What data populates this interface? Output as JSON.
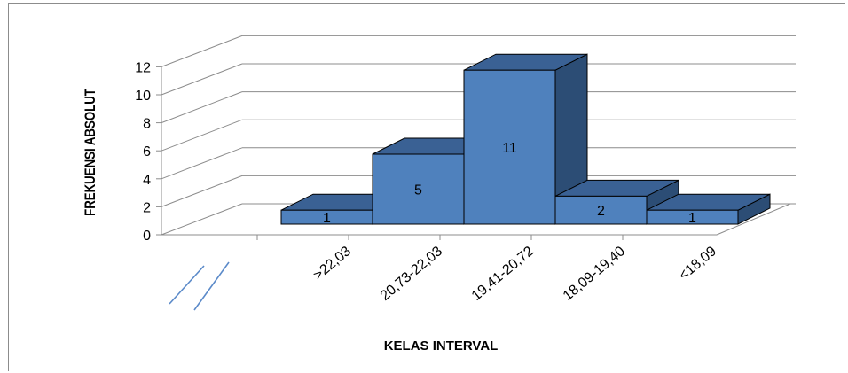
{
  "chart_data": {
    "type": "bar",
    "categories": [
      ">22,03",
      "20,73-22,03",
      "19,41-20,72",
      "18,09-19,40",
      "<18,09"
    ],
    "values": [
      1,
      5,
      11,
      2,
      1
    ],
    "title": "",
    "xlabel": "KELAS INTERVAL",
    "ylabel": "FREKUENSI ABSOLUT",
    "ylim": [
      0,
      12
    ],
    "yticks": [
      0,
      2,
      4,
      6,
      8,
      10,
      12
    ],
    "grid": true,
    "legend": "none",
    "style": "3d-column",
    "bar_color": "#4F81BD",
    "bar_side_color": "#2C4D75",
    "bar_top_color": "#3A6194"
  }
}
